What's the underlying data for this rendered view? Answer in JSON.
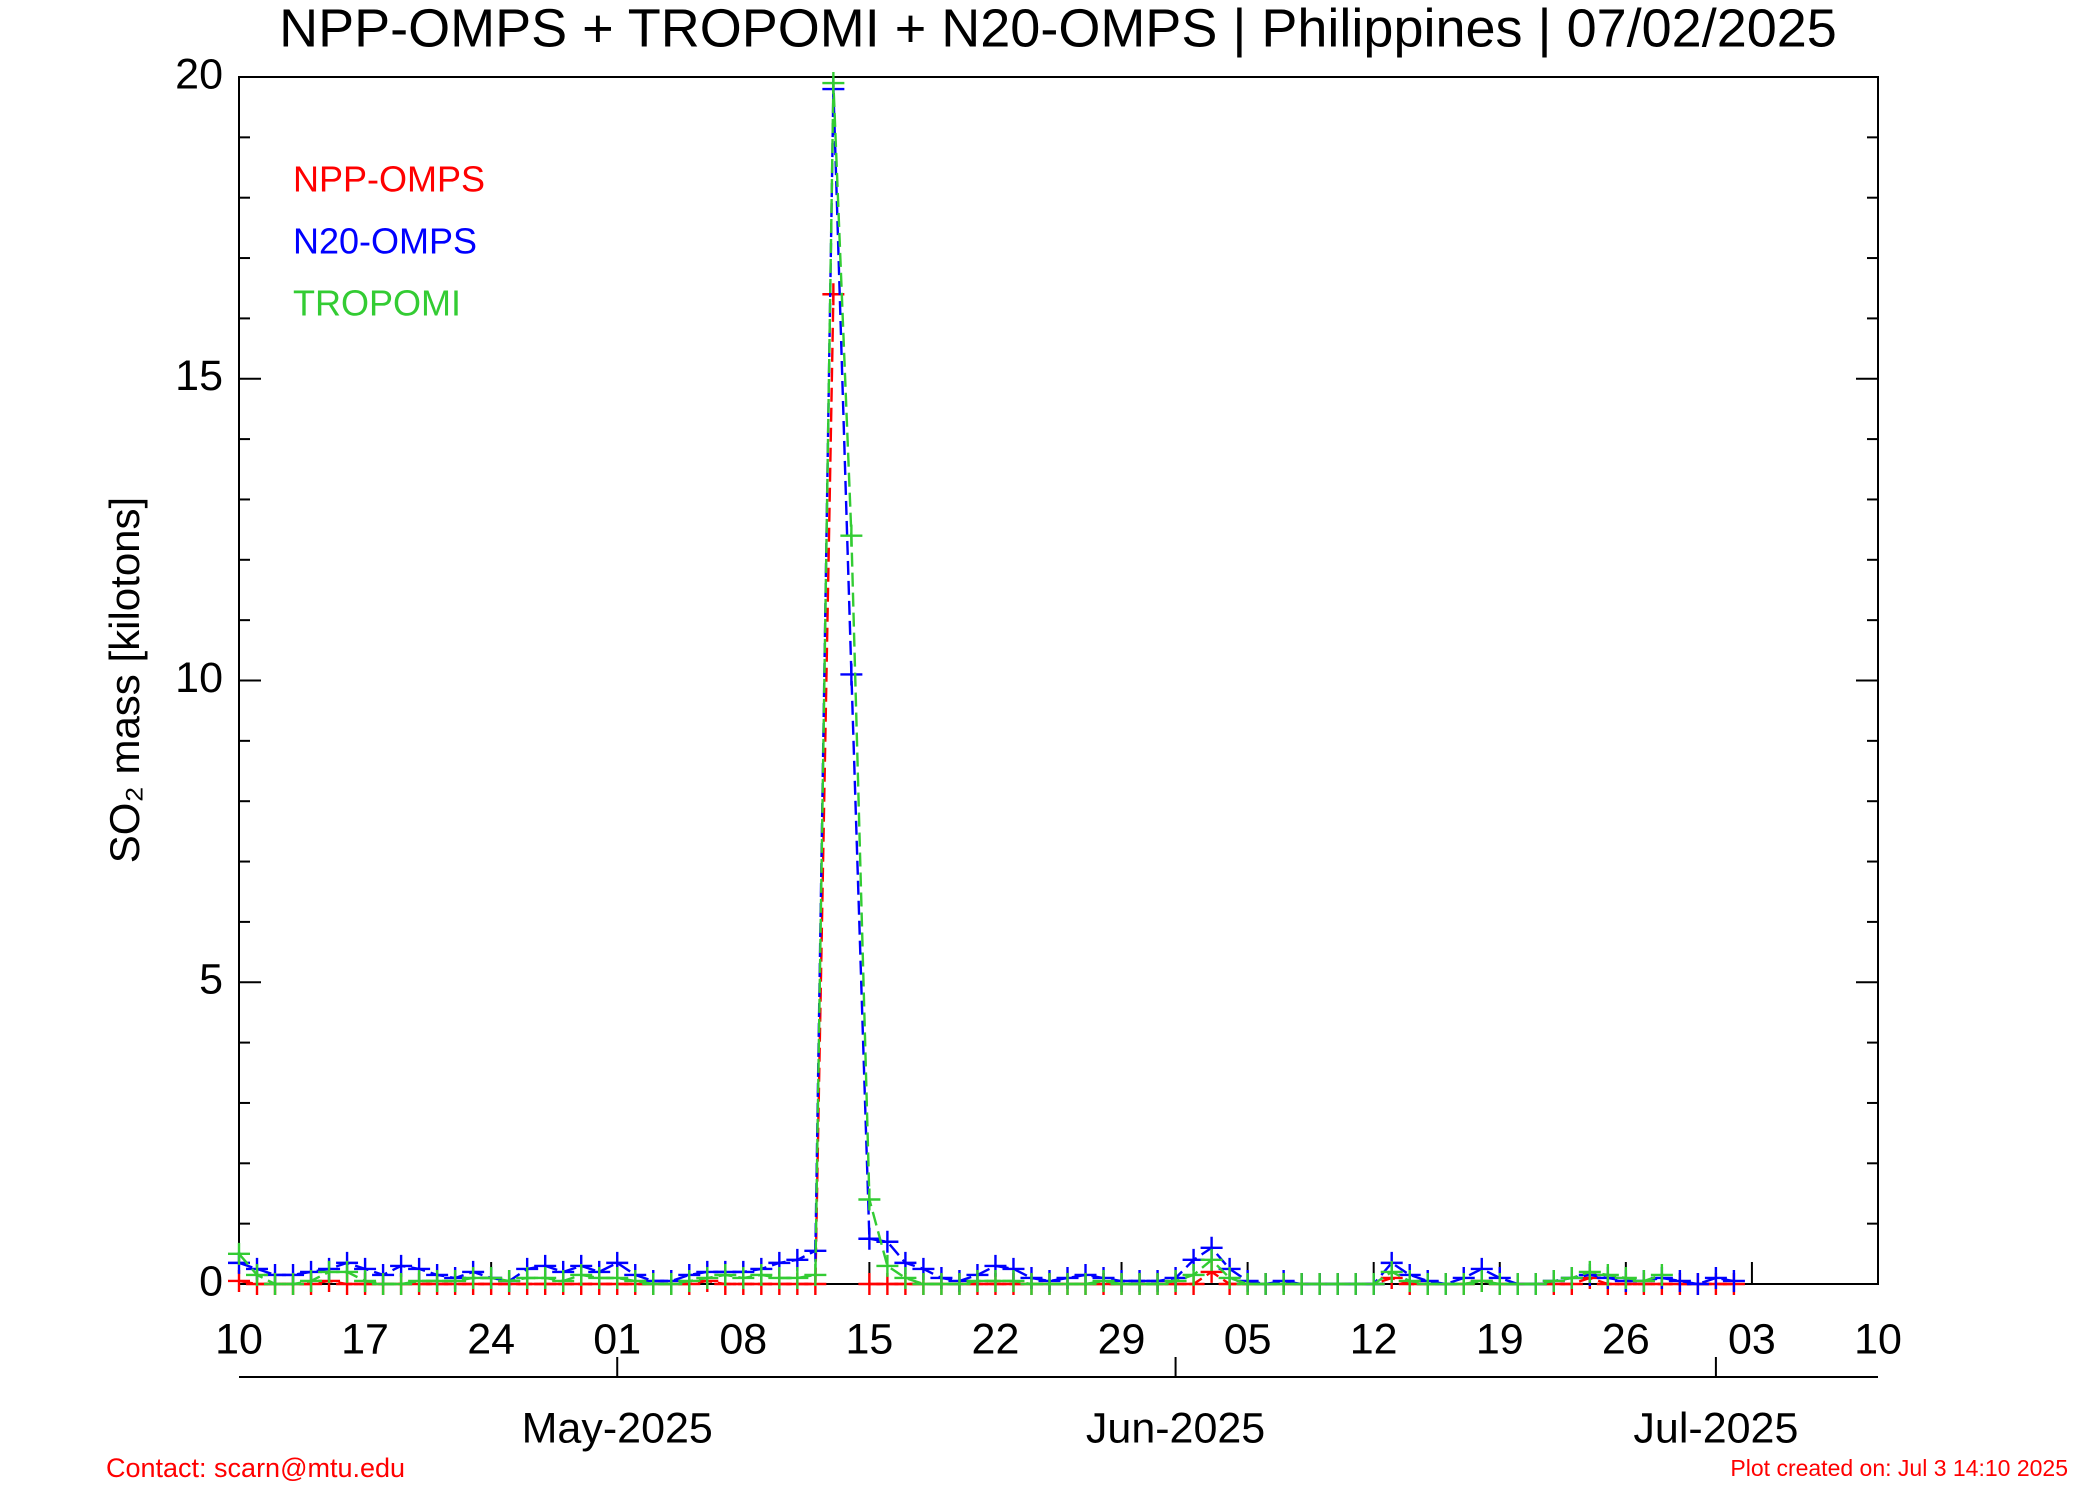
{
  "chart_data": {
    "type": "line",
    "title": "NPP-OMPS + TROPOMI + N20-OMPS | Philippines | 07/02/2025",
    "y_label": "SO₂ mass [kilotons]",
    "footer_left": "Contact: scarn@mtu.edu",
    "footer_right": "Plot created on: Jul  3 14:10 2025",
    "x": [
      "2025-04-10",
      "2025-04-11",
      "2025-04-12",
      "2025-04-13",
      "2025-04-14",
      "2025-04-15",
      "2025-04-16",
      "2025-04-17",
      "2025-04-18",
      "2025-04-19",
      "2025-04-20",
      "2025-04-21",
      "2025-04-22",
      "2025-04-23",
      "2025-04-24",
      "2025-04-25",
      "2025-04-26",
      "2025-04-27",
      "2025-04-28",
      "2025-04-29",
      "2025-04-30",
      "2025-05-01",
      "2025-05-02",
      "2025-05-03",
      "2025-05-04",
      "2025-05-05",
      "2025-05-06",
      "2025-05-07",
      "2025-05-08",
      "2025-05-09",
      "2025-05-10",
      "2025-05-11",
      "2025-05-12",
      "2025-05-13",
      "2025-05-14",
      "2025-05-15",
      "2025-05-16",
      "2025-05-17",
      "2025-05-18",
      "2025-05-19",
      "2025-05-20",
      "2025-05-21",
      "2025-05-22",
      "2025-05-23",
      "2025-05-24",
      "2025-05-25",
      "2025-05-26",
      "2025-05-27",
      "2025-05-28",
      "2025-05-29",
      "2025-05-30",
      "2025-05-31",
      "2025-06-01",
      "2025-06-02",
      "2025-06-03",
      "2025-06-04",
      "2025-06-05",
      "2025-06-06",
      "2025-06-07",
      "2025-06-08",
      "2025-06-09",
      "2025-06-10",
      "2025-06-11",
      "2025-06-12",
      "2025-06-13",
      "2025-06-14",
      "2025-06-15",
      "2025-06-16",
      "2025-06-17",
      "2025-06-18",
      "2025-06-19",
      "2025-06-20",
      "2025-06-21",
      "2025-06-22",
      "2025-06-23",
      "2025-06-24",
      "2025-06-25",
      "2025-06-26",
      "2025-06-27",
      "2025-06-28",
      "2025-06-29",
      "2025-06-30",
      "2025-07-01",
      "2025-07-02"
    ],
    "series": [
      {
        "name": "NPP-OMPS",
        "color": "#ff0000",
        "values": [
          0.05,
          0,
          0,
          0,
          0,
          0.05,
          0,
          0,
          0,
          0,
          0,
          0,
          0,
          0,
          0,
          0,
          0,
          0,
          0,
          0,
          0,
          0,
          0,
          0,
          0,
          0,
          0.05,
          0,
          0,
          0,
          0,
          0,
          0,
          16.4,
          null,
          0,
          0,
          0,
          0,
          0,
          0,
          0,
          0,
          0,
          0,
          0,
          0,
          0,
          0,
          0,
          0,
          0,
          0,
          0,
          0.2,
          0,
          0,
          0,
          0,
          0,
          0,
          0,
          0,
          0,
          0.1,
          0,
          0,
          0,
          0,
          0.05,
          0,
          0,
          0,
          0,
          0,
          0.1,
          0,
          0,
          0,
          0,
          0,
          0,
          0,
          0
        ]
      },
      {
        "name": "N20-OMPS",
        "color": "#0000ff",
        "values": [
          0.35,
          0.25,
          0.15,
          0.15,
          0.2,
          0.25,
          0.35,
          0.25,
          0.15,
          0.3,
          0.25,
          0.15,
          0.1,
          0.2,
          0.1,
          0.05,
          0.25,
          0.3,
          0.2,
          0.3,
          0.2,
          0.35,
          0.15,
          0.05,
          0.05,
          0.15,
          0.2,
          0.2,
          0.2,
          0.25,
          0.35,
          0.4,
          0.55,
          19.8,
          10.1,
          0.75,
          0.7,
          0.35,
          0.25,
          0.1,
          0.05,
          0.15,
          0.3,
          0.25,
          0.1,
          0.05,
          0.1,
          0.15,
          0.1,
          0.05,
          0.05,
          0.05,
          0.1,
          0.4,
          0.6,
          0.25,
          0.05,
          0,
          0.05,
          0,
          0,
          0,
          0,
          0,
          0.35,
          0.15,
          0.05,
          0,
          0.1,
          0.25,
          0.1,
          0,
          0,
          0.05,
          0.1,
          0.15,
          0.1,
          0.05,
          0.05,
          0.1,
          0.05,
          0,
          0.1,
          0.05
        ]
      },
      {
        "name": "TROPOMI",
        "color": "#33cc33",
        "values": [
          0.5,
          0.15,
          0,
          0,
          0.05,
          0.2,
          0.2,
          0.05,
          0,
          0,
          0.05,
          0.05,
          0.05,
          0.1,
          0.1,
          0.05,
          0.1,
          0.1,
          0.05,
          0.15,
          0.1,
          0.1,
          0.05,
          0,
          0,
          0.05,
          0.1,
          0.15,
          0.1,
          0.15,
          0.1,
          0.1,
          0.15,
          19.9,
          12.4,
          1.4,
          0.3,
          0.1,
          0,
          0,
          0,
          0.05,
          0.05,
          0.05,
          0,
          0,
          0,
          0,
          0.05,
          0,
          0,
          0,
          0.05,
          0.15,
          0.4,
          0.1,
          0,
          0,
          0,
          0,
          0,
          0,
          0,
          0,
          0.2,
          0.05,
          0,
          0,
          0,
          0.05,
          0,
          0,
          0,
          0.05,
          0.1,
          0.2,
          0.15,
          0.1,
          0.05,
          0.15,
          null,
          null,
          null,
          null
        ]
      }
    ],
    "xlim": [
      "2025-04-10",
      "2025-07-10"
    ],
    "xticks": [
      {
        "value": "2025-04-10",
        "label": "10"
      },
      {
        "value": "2025-04-17",
        "label": "17"
      },
      {
        "value": "2025-04-24",
        "label": "24"
      },
      {
        "value": "2025-05-01",
        "label": "01"
      },
      {
        "value": "2025-05-08",
        "label": "08"
      },
      {
        "value": "2025-05-15",
        "label": "15"
      },
      {
        "value": "2025-05-22",
        "label": "22"
      },
      {
        "value": "2025-05-29",
        "label": "29"
      },
      {
        "value": "2025-06-05",
        "label": "05"
      },
      {
        "value": "2025-06-12",
        "label": "12"
      },
      {
        "value": "2025-06-19",
        "label": "19"
      },
      {
        "value": "2025-06-26",
        "label": "26"
      },
      {
        "value": "2025-07-03",
        "label": "03"
      },
      {
        "value": "2025-07-10",
        "label": "10"
      }
    ],
    "month_ticks": [
      {
        "value": "2025-05-01",
        "label": "May-2025"
      },
      {
        "value": "2025-06-01",
        "label": "Jun-2025"
      },
      {
        "value": "2025-07-01",
        "label": "Jul-2025"
      }
    ],
    "ylim": [
      0,
      20
    ],
    "yticks": [
      0,
      5,
      10,
      15,
      20
    ],
    "y_minor_ticks": [
      1,
      2,
      3,
      4,
      6,
      7,
      8,
      9,
      11,
      12,
      13,
      14,
      16,
      17,
      18,
      19
    ],
    "legend": "upper left",
    "grid": false
  }
}
